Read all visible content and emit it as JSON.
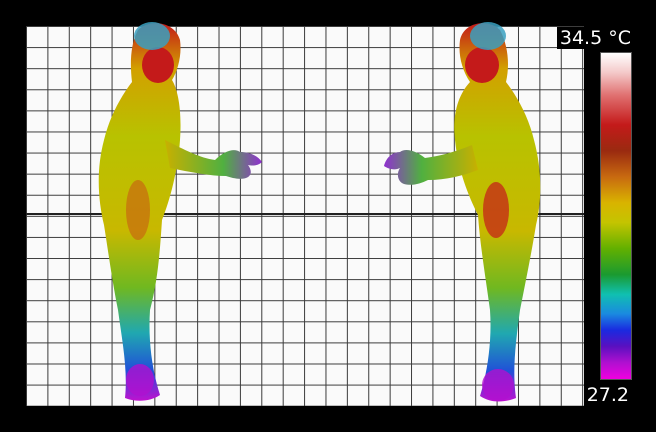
{
  "scale": {
    "max_label": "34.5 °C",
    "min_label": "27.2",
    "palette": [
      "#ffffff",
      "#c41a1a",
      "#c86a10",
      "#d9b400",
      "#1a9a30",
      "#10c0b0",
      "#1a2ae0",
      "#b010d0",
      "#f000e0"
    ]
  },
  "subjects": [
    {
      "facing": "right"
    },
    {
      "facing": "left"
    }
  ]
}
